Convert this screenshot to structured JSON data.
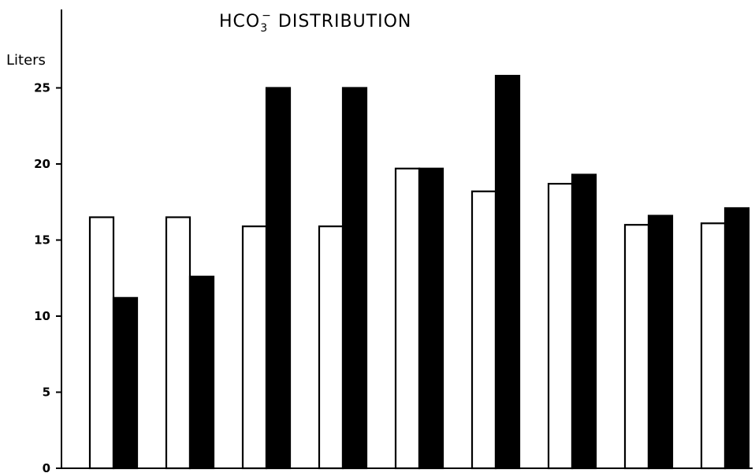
{
  "chart_data": {
    "type": "bar",
    "title": "HCO3⁻ DISTRIBUTION",
    "title_parts": {
      "main": "HCO",
      "subscript": "3",
      "superscript": "−",
      "rest": " DISTRIBUTION"
    },
    "ylabel": "Liters",
    "xlabel": "",
    "ylim": [
      0,
      30
    ],
    "yticks": [
      0,
      5,
      10,
      15,
      20,
      25
    ],
    "ytick_labels": [
      "0",
      "5",
      "10",
      "15",
      "20",
      "25"
    ],
    "grid": false,
    "legend": "none",
    "colors": {
      "open": "#ffffff",
      "solid": "#000000",
      "outline": "#000000"
    },
    "categories": [
      "",
      "",
      "",
      "",
      "",
      "",
      "",
      "",
      ""
    ],
    "series": [
      {
        "style": "open",
        "values": [
          16.5,
          16.5,
          15.9,
          15.9,
          19.7,
          18.2,
          18.7,
          16.0,
          16.1
        ]
      },
      {
        "style": "solid",
        "values": [
          11.2,
          12.6,
          25.0,
          25.0,
          19.7,
          25.8,
          19.3,
          16.6,
          17.1
        ]
      }
    ]
  }
}
